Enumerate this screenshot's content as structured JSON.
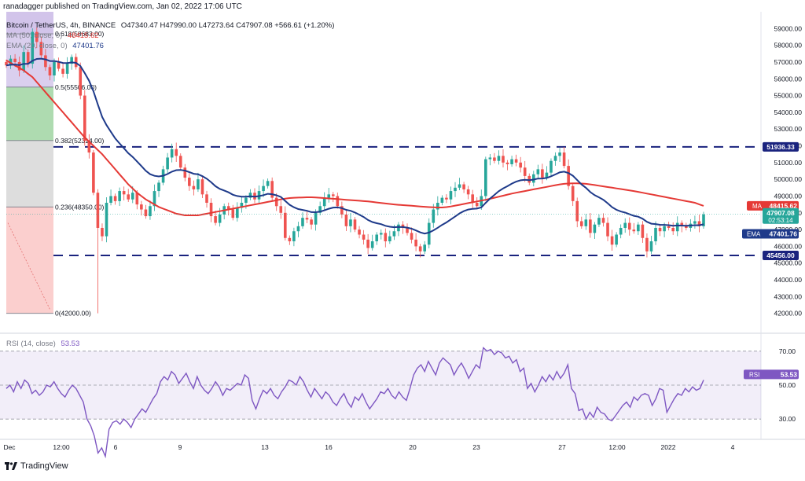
{
  "header": {
    "publisher": "ranadagger published on TradingView.com, Jan 02, 2022 17:06 UTC",
    "symbol": "Bitcoin / TetherUS, 4h, BINANCE",
    "ohlc": "O47340.47 H47990.00 L47273.64 C47907.08 +566.61 (+1.20%)",
    "ma_label": "MA (50, close, 0)",
    "ma_value": "48415.62",
    "ema_label": "EMA (20, close, 0)",
    "ema_value": "47401.76"
  },
  "rsi": {
    "label": "RSI (14, close)",
    "value": "53.53",
    "tag": "RSI",
    "levels": [
      70,
      50,
      30
    ],
    "series": [
      48,
      50,
      46,
      52,
      48,
      53,
      51,
      45,
      47,
      44,
      46,
      50,
      49,
      52,
      48,
      45,
      43,
      47,
      50,
      48,
      44,
      40,
      30,
      26,
      20,
      10,
      13,
      8,
      24,
      28,
      29,
      27,
      30,
      28,
      25,
      30,
      33,
      36,
      34,
      38,
      42,
      45,
      52,
      55,
      53,
      58,
      56,
      51,
      54,
      57,
      52,
      48,
      55,
      50,
      47,
      45,
      48,
      52,
      49,
      44,
      48,
      47,
      49,
      51,
      50,
      56,
      54,
      41,
      36,
      42,
      47,
      45,
      48,
      44,
      42,
      46,
      49,
      53,
      52,
      50,
      55,
      52,
      47,
      43,
      48,
      45,
      42,
      46,
      44,
      40,
      38,
      42,
      45,
      40,
      37,
      43,
      41,
      45,
      40,
      36,
      39,
      42,
      46,
      45,
      48,
      44,
      42,
      46,
      43,
      41,
      48,
      56,
      60,
      62,
      58,
      64,
      60,
      56,
      63,
      66,
      64,
      62,
      56,
      60,
      63,
      59,
      54,
      58,
      62,
      60,
      72,
      70,
      71,
      68,
      70,
      69,
      66,
      67,
      63,
      65,
      58,
      60,
      48,
      51,
      46,
      50,
      55,
      52,
      56,
      53,
      58,
      54,
      57,
      62,
      48,
      45,
      35,
      36,
      30,
      34,
      31,
      37,
      34,
      33,
      30,
      29,
      32,
      35,
      38,
      40,
      37,
      43,
      41,
      44,
      45,
      44,
      38,
      42,
      48,
      47,
      34,
      38,
      42,
      45,
      44,
      48,
      46,
      49,
      47,
      48,
      53
    ]
  },
  "footer": {
    "brand": "TradingView"
  },
  "colors": {
    "bull": "#26a69a",
    "bear": "#ef5350",
    "ma": "#e53935",
    "ema": "#1e3a8a",
    "level": "#1a237e",
    "rsi": "#7e57c2"
  },
  "chart_data": {
    "type": "candlestick",
    "title": "Bitcoin / TetherUS, 4h, BINANCE",
    "ylim": [
      41000,
      60000
    ],
    "y_ticks": [
      "59000.00",
      "58000.00",
      "57000.00",
      "56000.00",
      "55000.00",
      "54000.00",
      "53000.00",
      "52000.00",
      "51000.00",
      "50000.00",
      "49000.00",
      "48000.00",
      "47000.00",
      "46000.00",
      "45000.00",
      "44000.00",
      "43000.00",
      "42000.00"
    ],
    "x_tick_labels": [
      "Dec",
      "12:00",
      "6",
      "9",
      "13",
      "16",
      "20",
      "23",
      "27",
      "12:00",
      "2022",
      "4"
    ],
    "rsi_ticks": [
      "70.00",
      "50.00",
      "30.00"
    ],
    "horizontal_levels": [
      {
        "label": "51936.33",
        "value": 51936.33
      },
      {
        "label": "45456.00",
        "value": 45456.0
      }
    ],
    "price_tags": {
      "ma": {
        "label": "MA",
        "value": "48415.62"
      },
      "last": {
        "value": "47907.08",
        "countdown": "02:53:14"
      },
      "ema": {
        "label": "EMA",
        "value": "47401.76"
      }
    },
    "fib_levels": [
      {
        "label": "0.618(58683.00)",
        "value": 58683
      },
      {
        "label": "0.5(55506.00)",
        "value": 55506
      },
      {
        "label": "0.382(52314.00)",
        "value": 52314
      },
      {
        "label": "0.236(48350.00)",
        "value": 48350
      },
      {
        "label": "0(42000.00)",
        "value": 42000
      }
    ],
    "close": [
      56800,
      57200,
      57000,
      56500,
      57600,
      56900,
      58800,
      58200,
      57400,
      56700,
      56200,
      57000,
      56600,
      56300,
      56900,
      57300,
      56700,
      55000,
      52300,
      51600,
      49200,
      47100,
      46600,
      48600,
      49000,
      48700,
      49300,
      49100,
      48800,
      49200,
      48500,
      48200,
      47800,
      48400,
      49300,
      49800,
      50600,
      51300,
      51800,
      51400,
      50700,
      50100,
      49600,
      49400,
      50000,
      49100,
      48600,
      47800,
      47400,
      47900,
      48400,
      48200,
      47700,
      48300,
      48600,
      48900,
      49200,
      48800,
      49300,
      49600,
      49900,
      48900,
      48400,
      48000,
      46500,
      46300,
      46900,
      47200,
      47700,
      47600,
      47300,
      48000,
      48400,
      48900,
      49100,
      49000,
      48400,
      47900,
      47200,
      47600,
      47000,
      46700,
      46400,
      45900,
      46300,
      46700,
      46800,
      46300,
      46600,
      46900,
      47300,
      47100,
      46800,
      46400,
      46000,
      45700,
      46100,
      47400,
      48200,
      48600,
      48900,
      48800,
      49300,
      49500,
      49700,
      49400,
      49100,
      48600,
      48400,
      49000,
      51200,
      51300,
      51100,
      51400,
      51000,
      50900,
      51200,
      51000,
      50700,
      50200,
      49800,
      50300,
      50600,
      50100,
      50400,
      51100,
      51400,
      51600,
      50800,
      49600,
      48700,
      47500,
      47200,
      47600,
      46800,
      47300,
      47700,
      47400,
      46600,
      46100,
      46700,
      47100,
      47400,
      47000,
      46900,
      47300,
      46500,
      45700,
      46300,
      47100,
      46900,
      47200,
      47100,
      46900,
      47400,
      47200,
      47100,
      47350,
      47500,
      47200,
      47908
    ],
    "ma50": [
      57100,
      56950,
      56800,
      56650,
      56500,
      56300,
      56100,
      55800,
      55500,
      55200,
      54900,
      54600,
      54300,
      54000,
      53700,
      53400,
      53100,
      52800,
      52500,
      52250,
      52000,
      51750,
      51500,
      51200,
      50900,
      50600,
      50300,
      50000,
      49700,
      49450,
      49200,
      49000,
      48800,
      48650,
      48500,
      48350,
      48250,
      48150,
      48050,
      47950,
      47900,
      47850,
      47850,
      47850,
      47850,
      47900,
      47950,
      48000,
      48050,
      48100,
      48150,
      48200,
      48250,
      48300,
      48350,
      48400,
      48450,
      48500,
      48550,
      48600,
      48650,
      48700,
      48750,
      48800,
      48850,
      48880,
      48900,
      48910,
      48920,
      48930,
      48930,
      48920,
      48900,
      48880,
      48860,
      48840,
      48820,
      48800,
      48780,
      48760,
      48740,
      48720,
      48700,
      48680,
      48650,
      48620,
      48590,
      48560,
      48530,
      48500,
      48480,
      48460,
      48440,
      48420,
      48400,
      48380,
      48360,
      48340,
      48330,
      48320,
      48320,
      48340,
      48380,
      48430,
      48480,
      48530,
      48580,
      48630,
      48680,
      48730,
      48780,
      48840,
      48900,
      48960,
      49020,
      49090,
      49150,
      49200,
      49250,
      49300,
      49350,
      49400,
      49450,
      49500,
      49550,
      49600,
      49650,
      49700,
      49730,
      49750,
      49760,
      49760,
      49750,
      49730,
      49700,
      49660,
      49620,
      49580,
      49540,
      49500,
      49460,
      49420,
      49380,
      49340,
      49300,
      49250,
      49200,
      49150,
      49100,
      49050,
      49000,
      48950,
      48900,
      48850,
      48800,
      48750,
      48700,
      48650,
      48600,
      48500,
      48416
    ]
  }
}
